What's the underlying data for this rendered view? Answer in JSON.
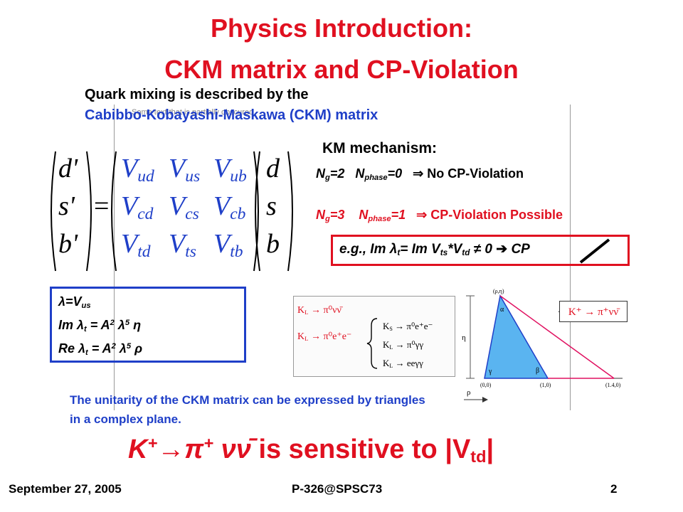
{
  "title_line1": "Physics Introduction:",
  "title_line2": "CKM matrix and CP-Violation",
  "intro_line1": "Quark mixing is described by the",
  "intro_line2": "Cabibbo-Kobayashi-Maskawa (CKM) matrix",
  "overlay_text": "Some text that is partially obscured",
  "matrix": {
    "lhs": [
      "d'",
      "s'",
      "b'"
    ],
    "ckm": [
      [
        "V",
        "ud"
      ],
      [
        "V",
        "us"
      ],
      [
        "V",
        "ub"
      ],
      [
        "V",
        "cd"
      ],
      [
        "V",
        "cs"
      ],
      [
        "V",
        "cb"
      ],
      [
        "V",
        "td"
      ],
      [
        "V",
        "ts"
      ],
      [
        "V",
        "tb"
      ]
    ],
    "rhs": [
      "d",
      "s",
      "b"
    ],
    "equals": "="
  },
  "km": {
    "heading": "KM mechanism:",
    "line1": {
      "ng": "N",
      "ng_sub": "g",
      "ng_val": "=2",
      "np": "N",
      "np_sub": "phase",
      "np_val": "=0",
      "arrow": "⇒",
      "result": "No CP-Violation"
    },
    "line2": {
      "ng": "N",
      "ng_sub": "g",
      "ng_val": "=3",
      "np": "N",
      "np_sub": "phase",
      "np_val": "=1",
      "arrow": "⇒",
      "result": "CP-Violation Possible"
    }
  },
  "example": {
    "prefix": "e.g., Im λ",
    "sub1": "t",
    "mid": "= Im V",
    "sub2": "ts",
    "mid2": "*V",
    "sub3": "td",
    "tail": " ≠ 0 ",
    "arrow": "➔",
    "cp": "CP"
  },
  "lambda_box": {
    "l1": "λ=V",
    "l1_sub": "us",
    "l2a": "Im λ",
    "l2_sub": "t",
    "l2b": " = A",
    "l2_sup": "2",
    "l2c": " λ",
    "l2_sup2": "5",
    "l2d": " η",
    "l3a": "Re λ",
    "l3_sub": "t",
    "l3b": " = A",
    "l3_sup": "2",
    "l3c": " λ",
    "l3_sup2": "5",
    "l3d": " ρ"
  },
  "decays": {
    "d1": "K",
    "d1_sub": "L",
    "d1_rest": " → π⁰νν̄",
    "d2": "K",
    "d2_sub": "L",
    "d2_rest": " → π⁰e⁺e⁻",
    "b1": "K",
    "b1_sub": "S",
    "b1_rest": " → π⁰e⁺e⁻",
    "b2": "K",
    "b2_sub": "L",
    "b2_rest": " → π⁰γγ",
    "b3": "K",
    "b3_sub": "L",
    "b3_rest": " → eeγγ"
  },
  "triangle": {
    "apex": "(ρ,η)",
    "alpha": "α",
    "gamma": "γ",
    "beta": "β",
    "eta": "η",
    "rho": "ρ",
    "o00": "(0,0)",
    "o10": "(1,0)",
    "o140": "(1.4,0)",
    "kplus_label": "K⁺ → π⁺νν̄"
  },
  "unitarity_line1": "The unitarity of the CKM matrix can be expressed by triangles",
  "unitarity_line2": "in a complex plane.",
  "big": {
    "k": "K",
    "k_sup": "+",
    "arrow": "→",
    "pi": "π",
    "pi_sup": "+",
    "nu": " νν̄ ",
    "text": "is sensitive to |V",
    "sub": "td",
    "end": "|"
  },
  "footer": {
    "date": "September 27, 2005",
    "ref": "P-326@SPSC73",
    "page": "2"
  },
  "colors": {
    "red": "#e01020",
    "blue": "#1f3fc8",
    "triangle": "#5ab4f0"
  }
}
